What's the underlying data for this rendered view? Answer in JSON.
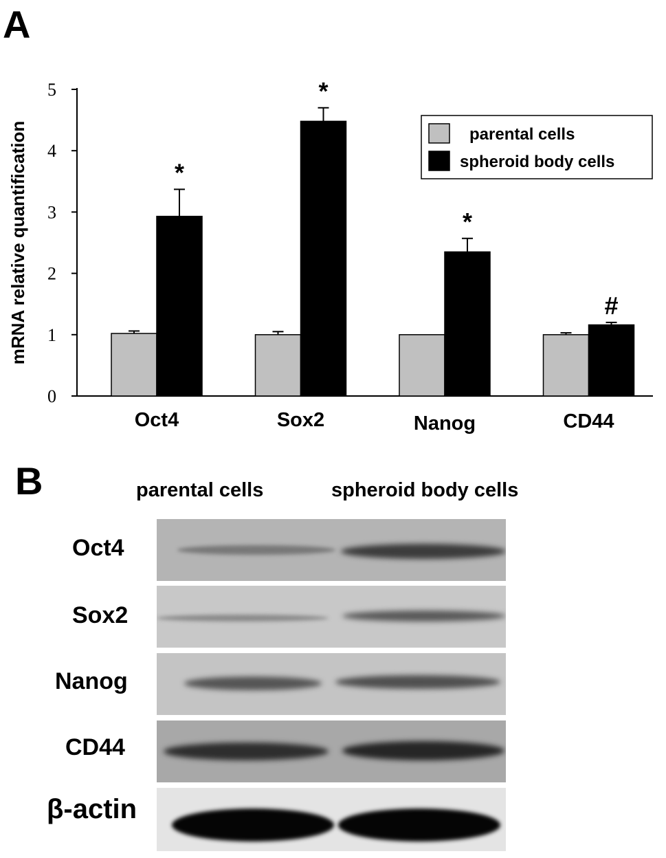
{
  "panel_a": {
    "letter": "A"
  },
  "panel_b": {
    "letter": "B"
  },
  "chart_data": {
    "type": "bar",
    "title": "",
    "xlabel": "",
    "ylabel": "mRNA relative quantification",
    "ylim": [
      0,
      5
    ],
    "yticks": [
      "0",
      "1",
      "2",
      "3",
      "4",
      "5"
    ],
    "categories": [
      "Oct4",
      "Sox2",
      "Nanog",
      "CD44"
    ],
    "series": [
      {
        "name": "parental cells",
        "color": "#c0c0c0",
        "values": [
          1.02,
          1.0,
          1.0,
          1.0
        ],
        "errors": [
          0.04,
          0.05,
          0.0,
          0.03
        ]
      },
      {
        "name": "spheroid body cells",
        "color": "#000000",
        "values": [
          2.93,
          4.48,
          2.35,
          1.16
        ],
        "errors": [
          0.44,
          0.22,
          0.22,
          0.04
        ]
      }
    ],
    "annotations": [
      "*",
      "*",
      "*",
      "#"
    ],
    "legend_position": "top-right",
    "grid": false
  },
  "western_blot": {
    "column_headers": [
      "parental cells",
      "spheroid body cells"
    ],
    "rows": [
      {
        "label": "Oct4"
      },
      {
        "label": "Sox2"
      },
      {
        "label": "Nanog"
      },
      {
        "label": "CD44"
      },
      {
        "label": "β-actin"
      }
    ]
  }
}
